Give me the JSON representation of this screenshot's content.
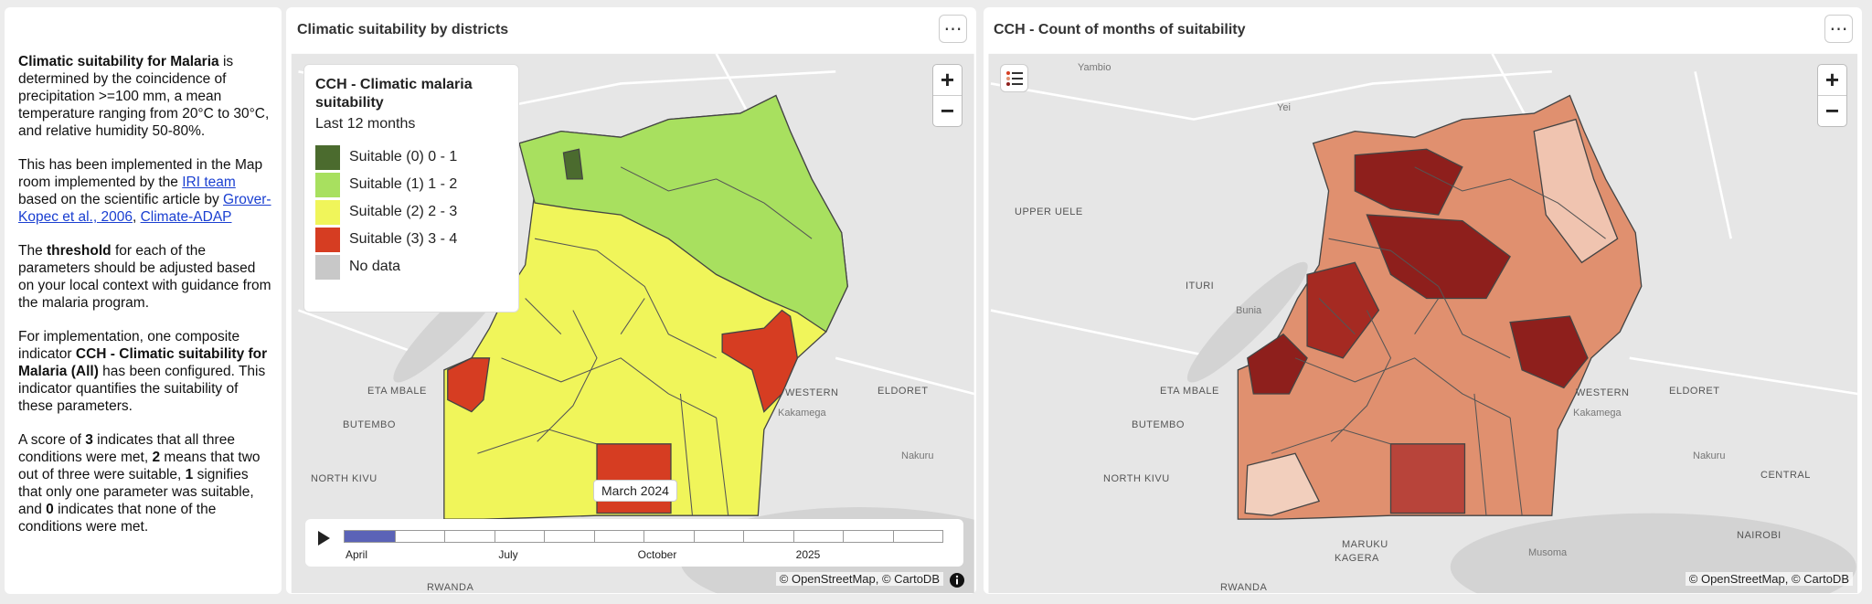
{
  "info_panel": {
    "paragraphs": [
      [
        {
          "text": "Climatic suitability for Malaria",
          "bold": true
        },
        {
          "text": " is determined by the coincidence of precipitation >=100 mm, a mean temperature ranging from 20°C to 30°C, and relative humidity 50-80%."
        }
      ],
      [
        {
          "text": "This has been implemented in the Map room implemented by the "
        },
        {
          "text": "IRI team",
          "link": true
        },
        {
          "text": " based on the scientific article by "
        },
        {
          "text": "Grover-Kopec et al., 2006",
          "link": true
        },
        {
          "text": ", "
        },
        {
          "text": "Climate-ADAP",
          "link": true
        }
      ],
      [
        {
          "text": "The "
        },
        {
          "text": "threshold",
          "bold": true
        },
        {
          "text": " for each of the parameters should be adjusted based on your local context with guidance from the malaria program."
        }
      ],
      [
        {
          "text": "For implementation, one composite indicator "
        },
        {
          "text": "CCH - Climatic suitability for Malaria (All)",
          "bold": true
        },
        {
          "text": " has been configured. This indicator quantifies the suitability of these parameters."
        }
      ],
      [
        {
          "text": "A score of "
        },
        {
          "text": "3",
          "bold": true
        },
        {
          "text": " indicates that all three conditions were met, "
        },
        {
          "text": "2",
          "bold": true
        },
        {
          "text": " means that two out of three were suitable, "
        },
        {
          "text": "1",
          "bold": true
        },
        {
          "text": " signifies that only one parameter was suitable, and "
        },
        {
          "text": "0",
          "bold": true
        },
        {
          "text": " indicates that none of the conditions were met."
        }
      ]
    ]
  },
  "controls": {
    "menu": "⋯",
    "zoom_in": "+",
    "zoom_out": "−"
  },
  "map_panels": [
    {
      "title": "Climatic suitability by districts",
      "legend": {
        "title": "CCH - Climatic malaria suitability",
        "subtitle": "Last 12 months",
        "items": [
          {
            "label": "Suitable (0) 0 - 1",
            "color": "#4b6b2e"
          },
          {
            "label": "Suitable (1) 1 - 2",
            "color": "#a8e05f"
          },
          {
            "label": "Suitable (2) 2 - 3",
            "color": "#f0f55a"
          },
          {
            "label": "Suitable (3) 3 - 4",
            "color": "#d63d22"
          },
          {
            "label": "No data",
            "color": "#c8c8c8"
          }
        ]
      },
      "timeline": {
        "labels": [
          "April",
          "July",
          "October",
          "2025"
        ],
        "tooltip": "March 2024"
      },
      "place_labels": [
        "ETA MBALE",
        "BUTEMBO",
        "NORTH KIVU",
        "WESTERN",
        "ELDORET",
        "Kakamega",
        "Nakuru",
        "RWANDA"
      ],
      "attribution": "© OpenStreetMap, © CartoDB"
    },
    {
      "title": "CCH - Count of months of suitability",
      "place_labels": [
        "Yambio",
        "Yei",
        "UPPER UELE",
        "ITURI",
        "Bunia",
        "ETA MBALE",
        "BUTEMBO",
        "NORTH KIVU",
        "WESTERN",
        "ELDORET",
        "Kakamega",
        "Nakuru",
        "CENTRAL",
        "NAIROBI",
        "MARUKU",
        "KAGERA",
        "Musoma",
        "RWANDA"
      ],
      "attribution": "© OpenStreetMap, © CartoDB"
    }
  ]
}
